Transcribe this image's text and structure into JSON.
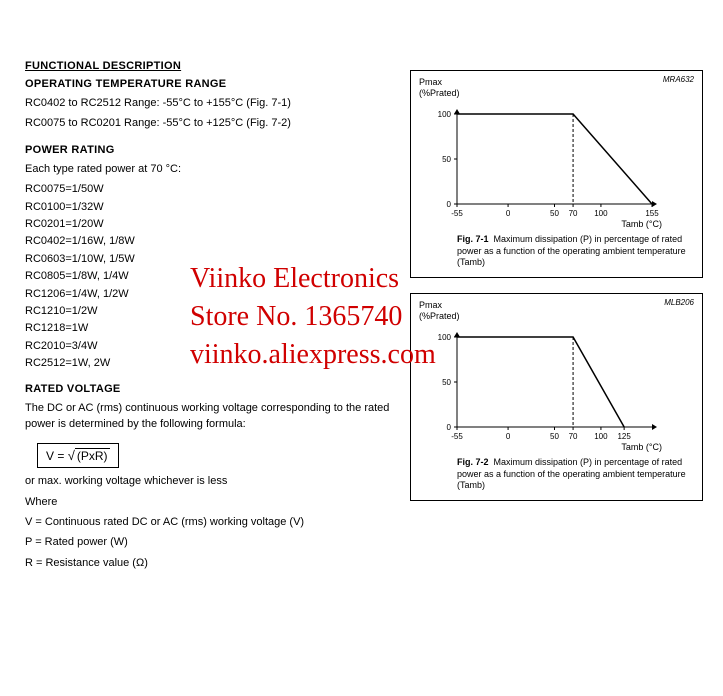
{
  "headings": {
    "main": "FUNCTIONAL DESCRIPTION",
    "temp_range": "OPERATING TEMPERATURE RANGE",
    "power_rating": "POWER RATING",
    "rated_voltage": "RATED VOLTAGE"
  },
  "temp_range": {
    "line1": "RC0402 to RC2512 Range: -55°C to +155°C (Fig. 7-1)",
    "line2": "RC0075 to RC0201 Range: -55°C to +125°C (Fig. 7-2)"
  },
  "power_rating": {
    "intro": "Each type rated power at 70 °C:",
    "rows": [
      "RC0075=1/50W",
      "RC0100=1/32W",
      "RC0201=1/20W",
      "RC0402=1/16W, 1/8W",
      "RC0603=1/10W, 1/5W",
      "RC0805=1/8W, 1/4W",
      "RC1206=1/4W, 1/2W",
      "RC1210=1/2W",
      "RC1218=1W",
      "RC2010=3/4W",
      "RC2512=1W, 2W"
    ]
  },
  "rated_voltage": {
    "intro": "The DC or AC (rms) continuous working voltage corresponding to the rated power is determined by the following formula:",
    "formula_lhs": "V =",
    "formula_radicand": "(PxR)",
    "note": "or max. working voltage whichever is less",
    "where": "Where",
    "defs": [
      "V = Continuous rated DC or AC (rms) working voltage (V)",
      "P = Rated power (W)",
      "R = Resistance value (Ω)"
    ]
  },
  "chart1": {
    "code": "MRA632",
    "ylabel_top": "Pmax",
    "ylabel_bot": "(%Prated)",
    "yticks": [
      "100",
      "50",
      "0"
    ],
    "xticks": [
      "-55",
      "0",
      "50",
      "70",
      "100",
      "155"
    ],
    "xlabel": "Tamb (°C)",
    "xlim": [
      -55,
      155
    ],
    "ylim": [
      0,
      100
    ],
    "line_points": [
      [
        -55,
        100
      ],
      [
        70,
        100
      ],
      [
        155,
        0
      ]
    ],
    "dash_x": 70,
    "caption_fig": "Fig. 7-1",
    "caption": "Maximum dissipation (P) in percentage of rated power as a function of the operating ambient temperature (Tamb)",
    "line_color": "#000000",
    "dash_color": "#000000",
    "bg_color": "#ffffff"
  },
  "chart2": {
    "code": "MLB206",
    "ylabel_top": "Pmax",
    "ylabel_bot": "(%Prated)",
    "yticks": [
      "100",
      "50",
      "0"
    ],
    "xticks": [
      "-55",
      "0",
      "50",
      "70",
      "100",
      "125"
    ],
    "xlabel": "Tamb (°C)",
    "xlim": [
      -55,
      155
    ],
    "ylim": [
      0,
      100
    ],
    "line_points": [
      [
        -55,
        100
      ],
      [
        70,
        100
      ],
      [
        125,
        0
      ]
    ],
    "dash_x": 70,
    "caption_fig": "Fig. 7-2",
    "caption": "Maximum dissipation (P) in percentage of rated power as a function of the operating ambient temperature (Tamb)",
    "line_color": "#000000",
    "dash_color": "#000000",
    "bg_color": "#ffffff"
  },
  "watermark": {
    "line1": "Viinko Electronics",
    "line2": "Store No. 1365740",
    "line3": "viinko.aliexpress.com"
  }
}
